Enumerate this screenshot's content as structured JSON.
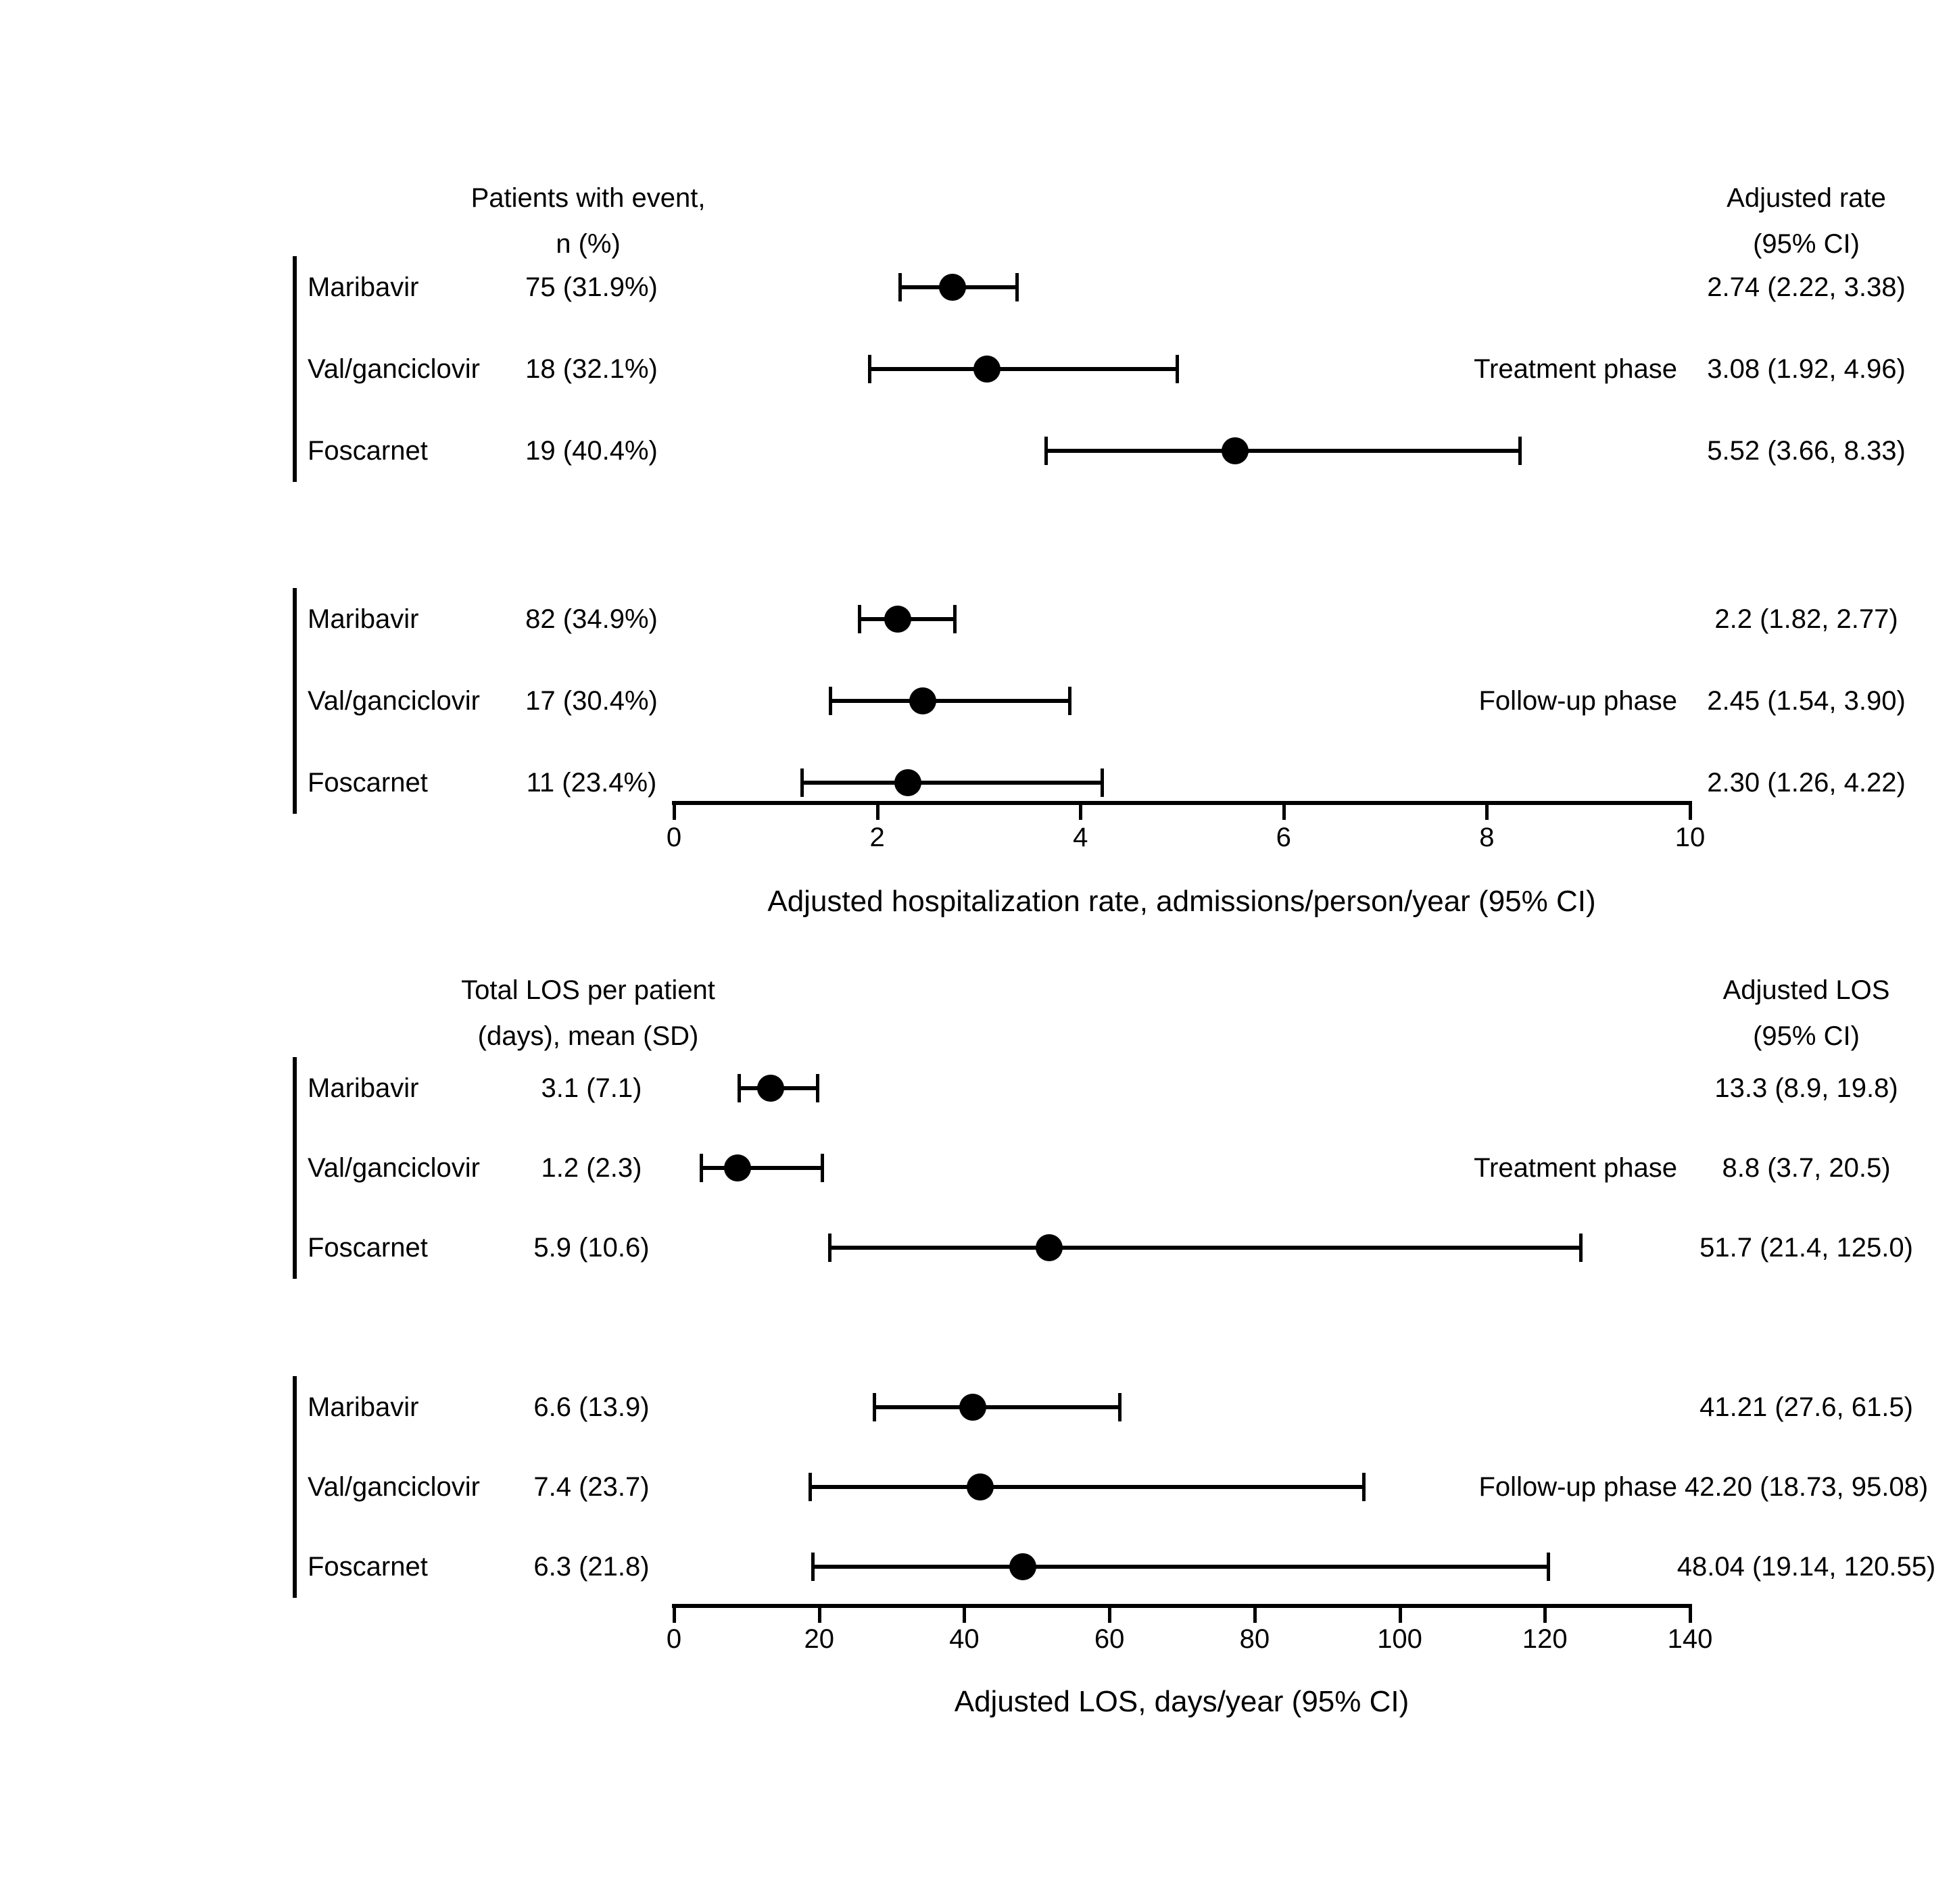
{
  "figure": {
    "background_color": "#ffffff",
    "ink_color": "#000000",
    "description": "Two-panel forest plot of adjusted hospitalization rate and adjusted length of stay (LOS) by treatment arm during treatment and follow-up phases"
  },
  "chart_data": [
    {
      "id": "hospitalization-rate",
      "type": "scatter",
      "subtype": "forest",
      "left_header": {
        "line1": "Patients with event,",
        "line2": "n (%)"
      },
      "right_header": {
        "line1": "Adjusted rate",
        "line2": "(95% CI)"
      },
      "axis": {
        "min": 0,
        "max": 10,
        "ticks": [
          0,
          2,
          4,
          6,
          8,
          10
        ],
        "title": "Adjusted hospitalization rate, admissions/person/year (95% CI)",
        "grid": false
      },
      "groups": [
        {
          "label": "Treatment phase",
          "rows": [
            {
              "label": "Maribavir",
              "stat": "75 (31.9%)",
              "estimate": 2.74,
              "ci_low": 2.22,
              "ci_high": 3.38,
              "ci_text": "2.74 (2.22, 3.38)"
            },
            {
              "label": "Val/ganciclovir",
              "stat": "18 (32.1%)",
              "estimate": 3.08,
              "ci_low": 1.92,
              "ci_high": 4.96,
              "ci_text": "3.08 (1.92, 4.96)"
            },
            {
              "label": "Foscarnet",
              "stat": "19 (40.4%)",
              "estimate": 5.52,
              "ci_low": 3.66,
              "ci_high": 8.33,
              "ci_text": "5.52 (3.66, 8.33)"
            }
          ]
        },
        {
          "label": "Follow-up phase",
          "rows": [
            {
              "label": "Maribavir",
              "stat": "82 (34.9%)",
              "estimate": 2.2,
              "ci_low": 1.82,
              "ci_high": 2.77,
              "ci_text": "2.2 (1.82, 2.77)"
            },
            {
              "label": "Val/ganciclovir",
              "stat": "17 (30.4%)",
              "estimate": 2.45,
              "ci_low": 1.54,
              "ci_high": 3.9,
              "ci_text": "2.45 (1.54, 3.90)"
            },
            {
              "label": "Foscarnet",
              "stat": "11 (23.4%)",
              "estimate": 2.3,
              "ci_low": 1.26,
              "ci_high": 4.22,
              "ci_text": "2.30 (1.26, 4.22)"
            }
          ]
        }
      ]
    },
    {
      "id": "length-of-stay",
      "type": "scatter",
      "subtype": "forest",
      "left_header": {
        "line1": "Total LOS per patient",
        "line2": "(days), mean (SD)"
      },
      "right_header": {
        "line1": "Adjusted LOS",
        "line2": "(95% CI)"
      },
      "axis": {
        "min": 0,
        "max": 140,
        "ticks": [
          0,
          20,
          40,
          60,
          80,
          100,
          120,
          140
        ],
        "title": "Adjusted LOS, days/year (95% CI)",
        "grid": false
      },
      "groups": [
        {
          "label": "Treatment phase",
          "rows": [
            {
              "label": "Maribavir",
              "stat": "3.1 (7.1)",
              "estimate": 13.3,
              "ci_low": 8.9,
              "ci_high": 19.8,
              "ci_text": "13.3 (8.9, 19.8)"
            },
            {
              "label": "Val/ganciclovir",
              "stat": "1.2 (2.3)",
              "estimate": 8.8,
              "ci_low": 3.7,
              "ci_high": 20.5,
              "ci_text": "8.8 (3.7, 20.5)"
            },
            {
              "label": "Foscarnet",
              "stat": "5.9 (10.6)",
              "estimate": 51.7,
              "ci_low": 21.4,
              "ci_high": 125.0,
              "ci_text": "51.7 (21.4, 125.0)"
            }
          ]
        },
        {
          "label": "Follow-up phase",
          "rows": [
            {
              "label": "Maribavir",
              "stat": "6.6 (13.9)",
              "estimate": 41.21,
              "ci_low": 27.6,
              "ci_high": 61.5,
              "ci_text": "41.21 (27.6, 61.5)"
            },
            {
              "label": "Val/ganciclovir",
              "stat": "7.4 (23.7)",
              "estimate": 42.2,
              "ci_low": 18.73,
              "ci_high": 95.08,
              "ci_text": "42.20 (18.73, 95.08)"
            },
            {
              "label": "Foscarnet",
              "stat": "6.3 (21.8)",
              "estimate": 48.04,
              "ci_low": 19.14,
              "ci_high": 120.55,
              "ci_text": "48.04 (19.14, 120.55)"
            }
          ]
        }
      ]
    }
  ]
}
